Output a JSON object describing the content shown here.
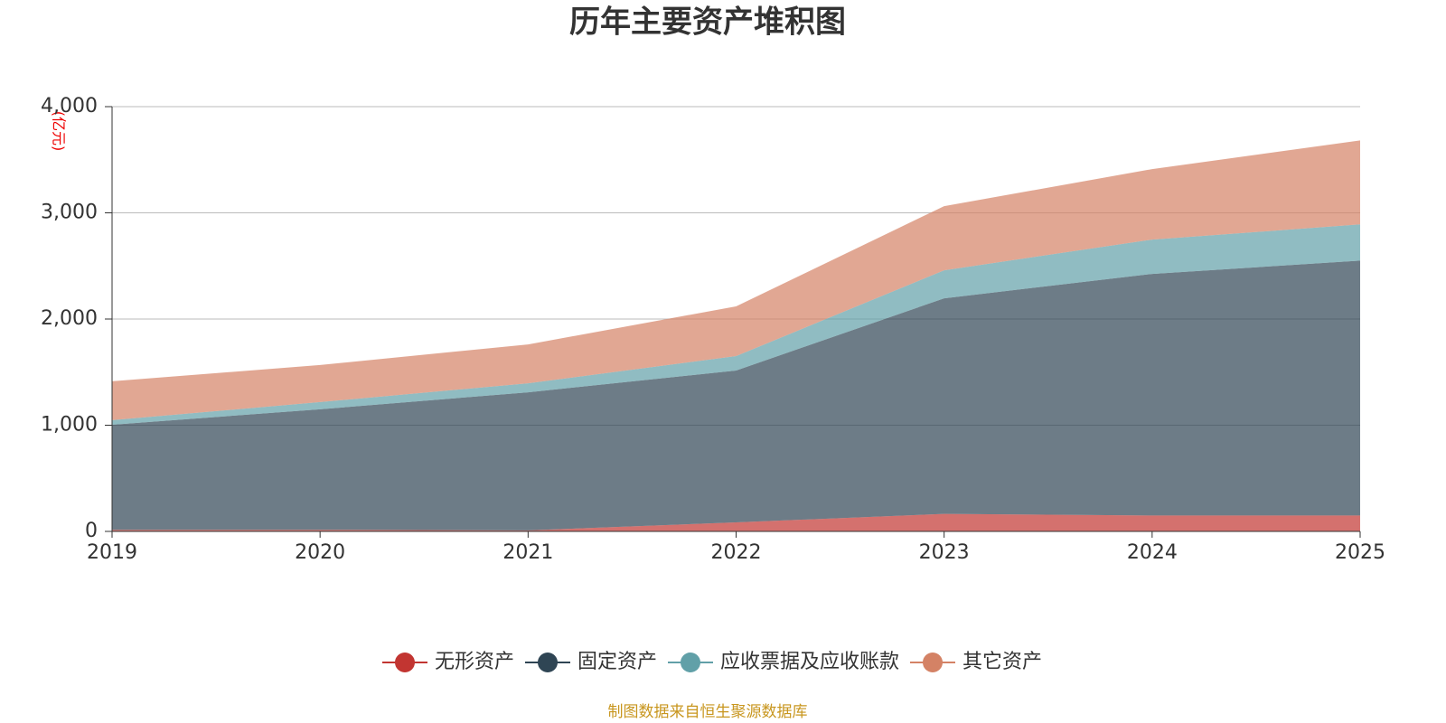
{
  "chart_data": {
    "type": "stacked_area",
    "title": "历年主要资产堆积图",
    "y_unit": "(亿元)",
    "source": "制图数据来自恒生聚源数据库",
    "categories": [
      "2019",
      "2020",
      "2021",
      "2022",
      "2023",
      "2024",
      "2025"
    ],
    "series": [
      {
        "name": "无形资产",
        "color": "#c23531",
        "values": [
          15,
          15,
          10,
          85,
          165,
          150,
          150
        ]
      },
      {
        "name": "固定资产",
        "color": "#2f4554",
        "values": [
          990,
          1135,
          1300,
          1430,
          2030,
          2275,
          2400
        ]
      },
      {
        "name": "应收票据及应收账款",
        "color": "#61a0a8",
        "values": [
          43,
          68,
          85,
          136,
          264,
          323,
          341
        ]
      },
      {
        "name": "其它资产",
        "color": "#d48265",
        "values": [
          366,
          349,
          366,
          468,
          604,
          664,
          791
        ]
      }
    ],
    "ylim": [
      0,
      4000
    ],
    "yticks": [
      0,
      {
        "value": 1000,
        "label": "1,000"
      },
      {
        "value": 2000,
        "label": "2,000"
      },
      {
        "value": 3000,
        "label": "3,000"
      },
      {
        "value": 4000,
        "label": "4,000"
      }
    ],
    "grid": true
  }
}
